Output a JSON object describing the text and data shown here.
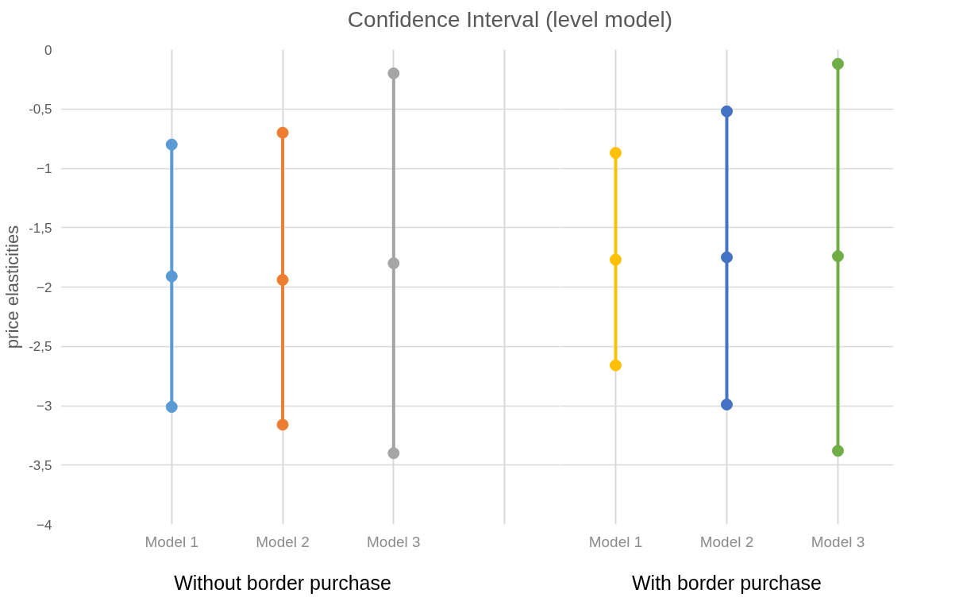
{
  "chart_data": [
    {
      "type": "line",
      "title": "Confidence Interval (level model)",
      "ylabel": "price elasticities",
      "xlabel": "Without border purchase",
      "categories": [
        "Model 1",
        "Model 2",
        "Model 3",
        null
      ],
      "series": [
        {
          "color": "#5b9bd5",
          "x": [
            "Model 1",
            "Model 1",
            "Model 1"
          ],
          "values": [
            -0.8,
            -1.91,
            -3.01
          ]
        },
        {
          "color": "#ed7d31",
          "x": [
            "Model 2",
            "Model 2",
            "Model 2"
          ],
          "values": [
            -0.7,
            -1.94,
            -3.16
          ]
        },
        {
          "color": "#a5a5a5",
          "x": [
            "Model 3",
            "Model 3",
            "Model 3"
          ],
          "values": [
            -0.2,
            -1.8,
            -3.4
          ]
        }
      ],
      "ylim": [
        -4,
        0
      ],
      "yticks": [
        0,
        {
          "value": -0.5,
          "label": "-0,5"
        },
        -1,
        {
          "value": -1.5,
          "label": "-1,5"
        },
        -2,
        {
          "value": -2.5,
          "label": "-2,5"
        },
        -3,
        {
          "value": -3.5,
          "label": "-3,5"
        },
        -4
      ],
      "grid": true,
      "marker": "circle",
      "line_style": "solid"
    },
    {
      "type": "line",
      "xlabel": "With border purchase",
      "categories": [
        "Model 1",
        "Model 2",
        "Model 3"
      ],
      "series": [
        {
          "color": "#ffc000",
          "x": [
            "Model 1",
            "Model 1",
            "Model 1"
          ],
          "values": [
            -0.87,
            -1.77,
            -2.66
          ]
        },
        {
          "color": "#4472c4",
          "x": [
            "Model 2",
            "Model 2",
            "Model 2"
          ],
          "values": [
            -0.52,
            -1.75,
            -2.99
          ]
        },
        {
          "color": "#70ad47",
          "x": [
            "Model 3",
            "Model 3",
            "Model 3"
          ],
          "values": [
            -0.12,
            -1.74,
            -3.38
          ]
        }
      ],
      "ylim": [
        -4,
        0
      ],
      "yticks": [
        0,
        -0.5,
        -1,
        -1.5,
        -2,
        -2.5,
        -3,
        -3.5,
        -4
      ],
      "tick_labels": "x",
      "grid": true,
      "marker": "circle",
      "line_style": "solid"
    }
  ]
}
